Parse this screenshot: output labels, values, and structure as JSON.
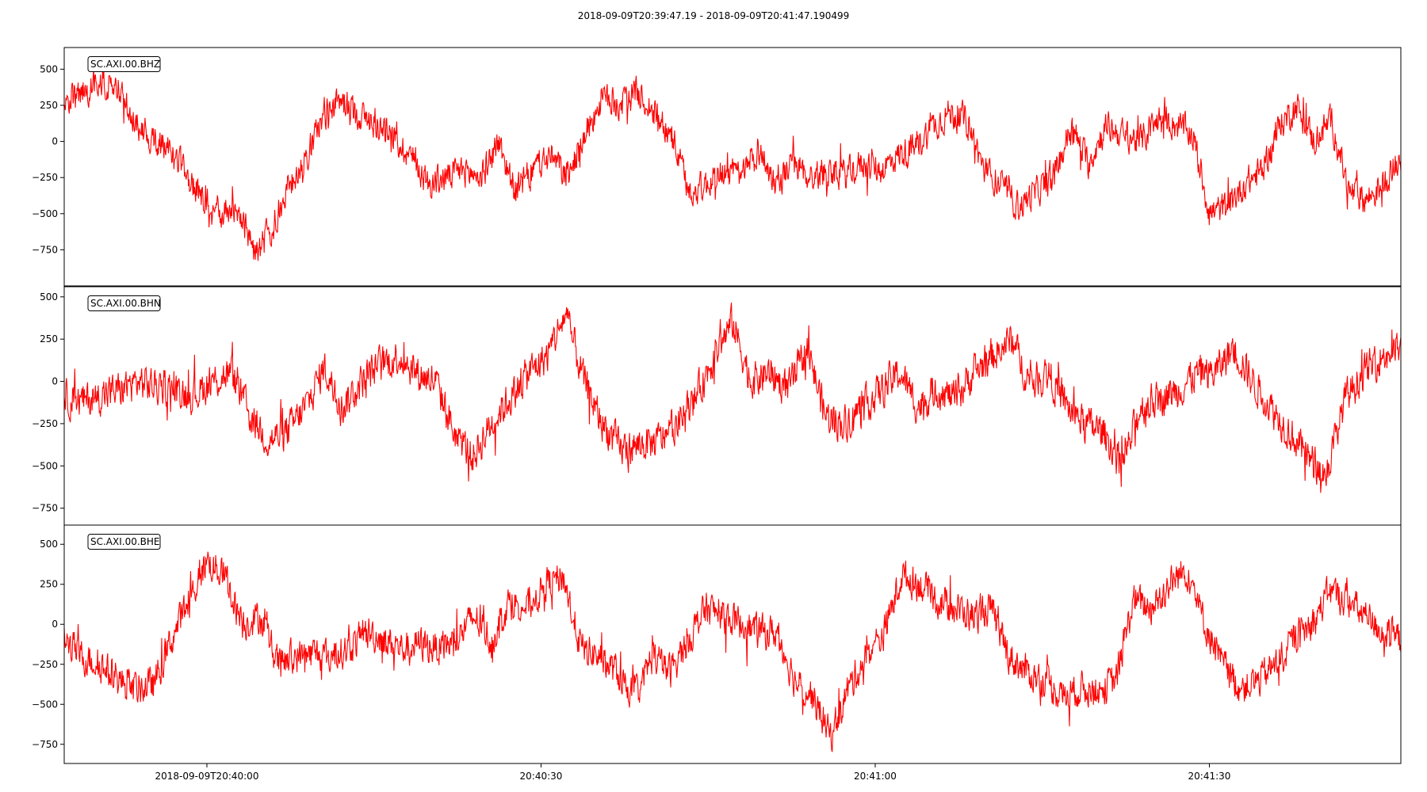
{
  "title": "2018-09-09T20:39:47.19  -  2018-09-09T20:41:47.190499",
  "chart_data": {
    "type": "line",
    "x_start": "2018-09-09T20:39:47.19",
    "x_end": "2018-09-09T20:41:47.190499",
    "x_ticks": [
      "2018-09-09T20:40:00",
      "20:40:30",
      "20:41:00",
      "20:41:30"
    ],
    "x_tick_times": [
      "2018-09-09T20:40:00",
      "2018-09-09T20:40:30",
      "2018-09-09T20:41:00",
      "2018-09-09T20:41:30"
    ],
    "line_color": "#ff0000",
    "grid": false,
    "traces": [
      {
        "name": "SC.AXI.00.BHZ",
        "ylim": [
          -1000,
          650
        ],
        "yticks": [
          500,
          250,
          0,
          -250,
          -500,
          -750
        ],
        "ytick_labels": [
          "500",
          "250",
          "0",
          "−250",
          "−500",
          "−750"
        ],
        "envelope": [
          250,
          330,
          420,
          380,
          150,
          30,
          -60,
          -220,
          -400,
          -500,
          -450,
          -780,
          -600,
          -300,
          -100,
          200,
          280,
          180,
          120,
          20,
          -100,
          -300,
          -250,
          -200,
          -250,
          0,
          -350,
          -200,
          -100,
          -250,
          50,
          300,
          250,
          350,
          200,
          50,
          -350,
          -300,
          -200,
          -250,
          -50,
          -300,
          -150,
          -250,
          -200,
          -230,
          -150,
          -200,
          -100,
          -50,
          100,
          200,
          150,
          -200,
          -300,
          -450,
          -350,
          -250,
          100,
          -150,
          100,
          50,
          0,
          150,
          120,
          50,
          -500,
          -450,
          -300,
          -200,
          100,
          250,
          0,
          150,
          -350,
          -400,
          -300,
          -100
        ]
      },
      {
        "name": "SC.AXI.00.BHN",
        "ylim": [
          -850,
          560
        ],
        "yticks": [
          500,
          250,
          0,
          -250,
          -500,
          -750
        ],
        "ytick_labels": [
          "500",
          "250",
          "0",
          "−250",
          "−500",
          "−750"
        ],
        "envelope": [
          -100,
          -120,
          -80,
          -50,
          0,
          -30,
          -50,
          -80,
          0,
          50,
          -200,
          -350,
          -300,
          -150,
          80,
          -150,
          0,
          100,
          150,
          50,
          0,
          -300,
          -450,
          -250,
          -100,
          50,
          150,
          400,
          0,
          -250,
          -400,
          -380,
          -350,
          -250,
          -100,
          150,
          350,
          0,
          50,
          -50,
          200,
          -200,
          -250,
          -150,
          -50,
          50,
          -150,
          -50,
          -100,
          50,
          150,
          250,
          0,
          50,
          -150,
          -250,
          -300,
          -500,
          -150,
          -100,
          -50,
          50,
          50,
          200,
          0,
          -150,
          -300,
          -450,
          -550,
          -100,
          50,
          150,
          200
        ]
      },
      {
        "name": "SC.AXI.00.BHE",
        "ylim": [
          -870,
          620
        ],
        "yticks": [
          500,
          250,
          0,
          -250,
          -500,
          -750
        ],
        "ytick_labels": [
          "500",
          "250",
          "0",
          "−250",
          "−500",
          "−750"
        ],
        "envelope": [
          -100,
          -200,
          -250,
          -350,
          -400,
          -380,
          -100,
          150,
          400,
          300,
          0,
          50,
          -250,
          -200,
          -180,
          -200,
          -150,
          -50,
          -100,
          -150,
          -120,
          -150,
          -100,
          50,
          -100,
          150,
          100,
          250,
          300,
          -150,
          -200,
          -300,
          -450,
          -200,
          -300,
          -100,
          100,
          50,
          0,
          -50,
          -50,
          -350,
          -450,
          -700,
          -400,
          -200,
          -50,
          300,
          250,
          150,
          100,
          50,
          100,
          -200,
          -300,
          -350,
          -450,
          -400,
          -420,
          -350,
          150,
          100,
          250,
          350,
          0,
          -250,
          -400,
          -350,
          -250,
          -100,
          0,
          200,
          150,
          50,
          -50,
          -100
        ]
      }
    ]
  }
}
